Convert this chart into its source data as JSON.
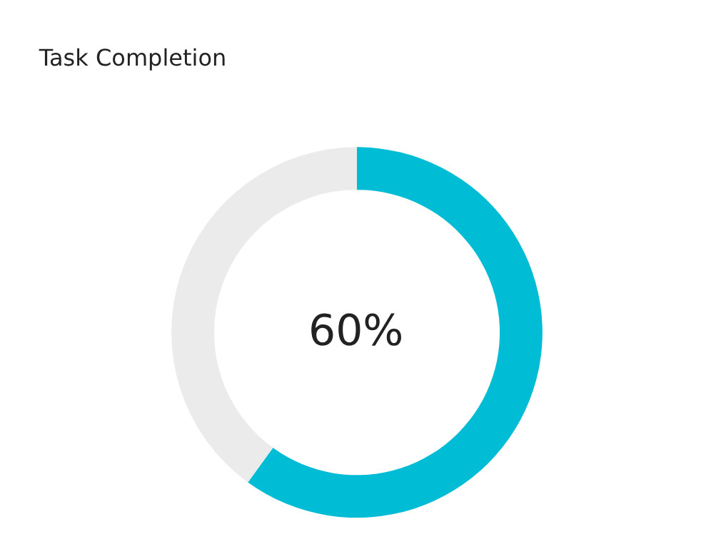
{
  "chart_data": {
    "type": "donut",
    "title": "Task Completion",
    "categories": [
      null,
      null
    ],
    "values": [
      60,
      40
    ],
    "colors": [
      "#00bcd4",
      "#ebebeb"
    ],
    "annotations": [
      "60%"
    ],
    "legend": false
  }
}
